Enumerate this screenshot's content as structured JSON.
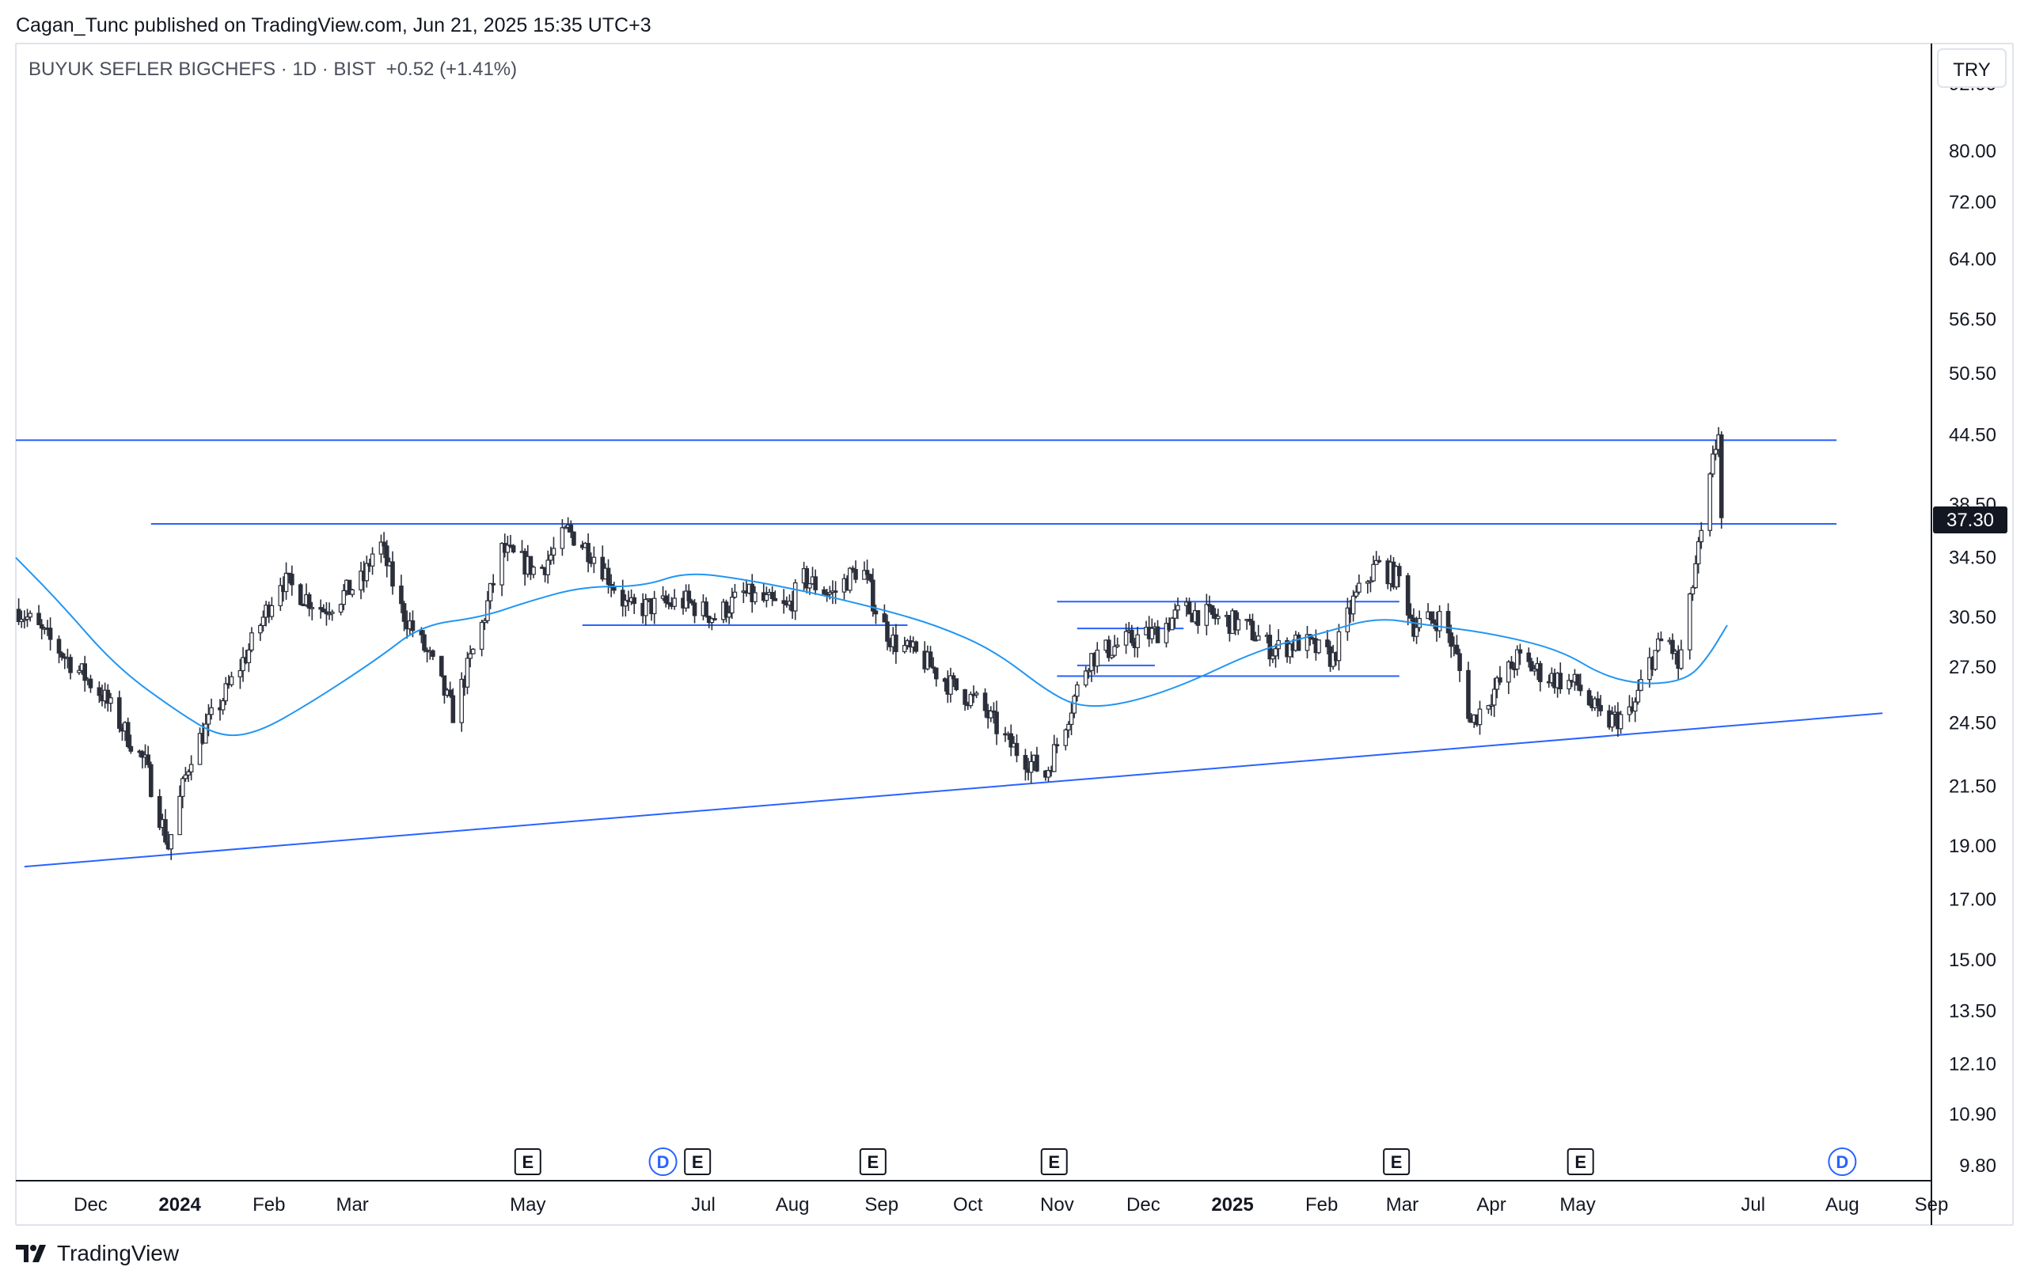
{
  "header": {
    "publisher_line": "Cagan_Tunc published on TradingView.com, Jun 21, 2025 15:35 UTC+3"
  },
  "legend": {
    "symbol": "BUYUK SEFLER BIGCHEFS · 1D · BIST",
    "change": "+0.52 (+1.41%)"
  },
  "footer": {
    "brand": "TradingView"
  },
  "colors": {
    "candle": "#2b2f3a",
    "trendline": "#2962ff",
    "moving_average": "#2196f3",
    "last_price_bg": "#131722",
    "grid_border": "#e0e3eb"
  },
  "chart_data": {
    "type": "candlestick",
    "currency": "TRY",
    "scale": "log",
    "last_price": "37.30",
    "y_ticks": [
      "92.00",
      "80.00",
      "72.00",
      "64.00",
      "56.50",
      "50.50",
      "44.50",
      "38.50",
      "34.50",
      "30.50",
      "27.50",
      "24.50",
      "21.50",
      "19.00",
      "17.00",
      "15.00",
      "13.50",
      "12.10",
      "10.90",
      "9.80"
    ],
    "x_ticks": [
      {
        "label": "Dec",
        "date": "2023-12-01",
        "bold": false
      },
      {
        "label": "2024",
        "date": "2024-01-01",
        "bold": true
      },
      {
        "label": "Feb",
        "date": "2024-02-01",
        "bold": false
      },
      {
        "label": "Mar",
        "date": "2024-03-01",
        "bold": false
      },
      {
        "label": "May",
        "date": "2024-05-01",
        "bold": false
      },
      {
        "label": "Jul",
        "date": "2024-07-01",
        "bold": false
      },
      {
        "label": "Aug",
        "date": "2024-08-01",
        "bold": false
      },
      {
        "label": "Sep",
        "date": "2024-09-01",
        "bold": false
      },
      {
        "label": "Oct",
        "date": "2024-10-01",
        "bold": false
      },
      {
        "label": "Nov",
        "date": "2024-11-01",
        "bold": false
      },
      {
        "label": "Dec",
        "date": "2024-12-01",
        "bold": false
      },
      {
        "label": "2025",
        "date": "2025-01-01",
        "bold": true
      },
      {
        "label": "Feb",
        "date": "2025-02-01",
        "bold": false
      },
      {
        "label": "Mar",
        "date": "2025-03-01",
        "bold": false
      },
      {
        "label": "Apr",
        "date": "2025-04-01",
        "bold": false
      },
      {
        "label": "May",
        "date": "2025-05-01",
        "bold": false
      },
      {
        "label": "Jul",
        "date": "2025-07-01",
        "bold": false
      },
      {
        "label": "Aug",
        "date": "2025-08-01",
        "bold": false
      },
      {
        "label": "Sep",
        "date": "2025-09-01",
        "bold": false
      }
    ],
    "x_range": [
      "2023-11-05",
      "2025-09-01"
    ],
    "y_range": [
      9.5,
      100
    ],
    "price_path": [
      [
        "2023-11-06",
        31.0
      ],
      [
        "2023-11-20",
        28.5
      ],
      [
        "2023-12-05",
        26.0
      ],
      [
        "2023-12-20",
        22.5
      ],
      [
        "2023-12-28",
        19.0
      ],
      [
        "2024-01-05",
        23.0
      ],
      [
        "2024-01-15",
        25.5
      ],
      [
        "2024-01-25",
        28.5
      ],
      [
        "2024-02-05",
        33.0
      ],
      [
        "2024-02-20",
        31.0
      ],
      [
        "2024-03-05",
        33.0
      ],
      [
        "2024-03-10",
        36.0
      ],
      [
        "2024-03-18",
        31.0
      ],
      [
        "2024-03-28",
        28.0
      ],
      [
        "2024-04-05",
        25.0
      ],
      [
        "2024-04-15",
        30.0
      ],
      [
        "2024-04-22",
        35.0
      ],
      [
        "2024-05-05",
        33.5
      ],
      [
        "2024-05-15",
        36.5
      ],
      [
        "2024-05-25",
        34.5
      ],
      [
        "2024-06-05",
        31.0
      ],
      [
        "2024-06-25",
        31.5
      ],
      [
        "2024-07-05",
        30.5
      ],
      [
        "2024-07-15",
        32.0
      ],
      [
        "2024-07-30",
        31.0
      ],
      [
        "2024-08-05",
        33.0
      ],
      [
        "2024-08-15",
        32.0
      ],
      [
        "2024-08-25",
        34.0
      ],
      [
        "2024-08-31",
        30.5
      ],
      [
        "2024-09-05",
        29.0
      ],
      [
        "2024-09-15",
        28.0
      ],
      [
        "2024-09-25",
        26.5
      ],
      [
        "2024-10-05",
        25.5
      ],
      [
        "2024-10-15",
        23.5
      ],
      [
        "2024-10-28",
        22.0
      ],
      [
        "2024-11-05",
        25.0
      ],
      [
        "2024-11-12",
        28.0
      ],
      [
        "2024-11-25",
        29.0
      ],
      [
        "2024-12-05",
        29.5
      ],
      [
        "2024-12-15",
        31.0
      ],
      [
        "2024-12-25",
        30.5
      ],
      [
        "2025-01-05",
        30.0
      ],
      [
        "2025-01-15",
        28.5
      ],
      [
        "2025-01-25",
        29.0
      ],
      [
        "2025-02-05",
        28.0
      ],
      [
        "2025-02-12",
        31.5
      ],
      [
        "2025-02-20",
        34.0
      ],
      [
        "2025-02-28",
        33.0
      ],
      [
        "2025-03-05",
        30.0
      ],
      [
        "2025-03-15",
        30.5
      ],
      [
        "2025-03-20",
        28.0
      ],
      [
        "2025-03-25",
        24.5
      ],
      [
        "2025-04-01",
        26.0
      ],
      [
        "2025-04-10",
        28.0
      ],
      [
        "2025-04-20",
        27.0
      ],
      [
        "2025-05-01",
        26.5
      ],
      [
        "2025-05-10",
        24.5
      ],
      [
        "2025-05-20",
        25.0
      ],
      [
        "2025-05-25",
        27.5
      ],
      [
        "2025-06-01",
        29.5
      ],
      [
        "2025-06-05",
        27.5
      ],
      [
        "2025-06-08",
        30.0
      ],
      [
        "2025-06-11",
        34.0
      ],
      [
        "2025-06-14",
        37.0
      ],
      [
        "2025-06-17",
        42.0
      ],
      [
        "2025-06-19",
        45.0
      ],
      [
        "2025-06-20",
        37.3
      ]
    ],
    "series": [
      {
        "kind": "moving_average",
        "points": [
          [
            "2023-11-05",
            34.5
          ],
          [
            "2023-11-20",
            31.5
          ],
          [
            "2023-12-10",
            27.5
          ],
          [
            "2024-01-01",
            25.0
          ],
          [
            "2024-01-15",
            23.8
          ],
          [
            "2024-01-28",
            24.0
          ],
          [
            "2024-02-15",
            25.5
          ],
          [
            "2024-03-10",
            28.0
          ],
          [
            "2024-03-25",
            30.0
          ],
          [
            "2024-04-15",
            30.5
          ],
          [
            "2024-05-01",
            31.5
          ],
          [
            "2024-05-20",
            32.5
          ],
          [
            "2024-06-10",
            32.5
          ],
          [
            "2024-06-25",
            33.5
          ],
          [
            "2024-07-15",
            33.0
          ],
          [
            "2024-08-10",
            32.0
          ],
          [
            "2024-09-01",
            31.0
          ],
          [
            "2024-09-20",
            30.0
          ],
          [
            "2024-10-10",
            28.5
          ],
          [
            "2024-10-30",
            26.0
          ],
          [
            "2024-11-10",
            25.3
          ],
          [
            "2024-11-25",
            25.5
          ],
          [
            "2024-12-15",
            26.5
          ],
          [
            "2025-01-10",
            28.5
          ],
          [
            "2025-02-01",
            29.5
          ],
          [
            "2025-02-20",
            30.5
          ],
          [
            "2025-03-10",
            30.0
          ],
          [
            "2025-04-01",
            29.5
          ],
          [
            "2025-04-25",
            28.5
          ],
          [
            "2025-05-10",
            27.0
          ],
          [
            "2025-05-25",
            26.5
          ],
          [
            "2025-06-08",
            26.8
          ],
          [
            "2025-06-15",
            28.0
          ],
          [
            "2025-06-22",
            30.0
          ]
        ]
      },
      {
        "kind": "trendlines",
        "lines": [
          {
            "from": [
              "2023-11-08",
              18.2
            ],
            "to": [
              "2025-08-15",
              25.0
            ]
          },
          {
            "from": [
              "2023-11-05",
              44.0
            ],
            "to": [
              "2025-07-30",
              44.0
            ]
          },
          {
            "from": [
              "2023-12-22",
              37.0
            ],
            "to": [
              "2025-07-30",
              37.0
            ]
          },
          {
            "from": [
              "2024-05-20",
              30.0
            ],
            "to": [
              "2024-09-10",
              30.0
            ]
          },
          {
            "from": [
              "2024-11-01",
              31.5
            ],
            "to": [
              "2025-02-28",
              31.5
            ]
          },
          {
            "from": [
              "2024-11-08",
              29.8
            ],
            "to": [
              "2024-12-15",
              29.8
            ]
          },
          {
            "from": [
              "2024-11-01",
              27.0
            ],
            "to": [
              "2025-02-28",
              27.0
            ]
          },
          {
            "from": [
              "2024-11-08",
              27.6
            ],
            "to": [
              "2024-12-05",
              27.6
            ]
          }
        ]
      }
    ],
    "events": [
      {
        "type": "E",
        "date": "2024-05-01"
      },
      {
        "type": "D",
        "date": "2024-06-17"
      },
      {
        "type": "E",
        "date": "2024-06-29"
      },
      {
        "type": "E",
        "date": "2024-08-29"
      },
      {
        "type": "E",
        "date": "2024-10-31"
      },
      {
        "type": "E",
        "date": "2025-02-27"
      },
      {
        "type": "E",
        "date": "2025-05-02"
      },
      {
        "type": "D",
        "date": "2025-08-01"
      }
    ]
  }
}
